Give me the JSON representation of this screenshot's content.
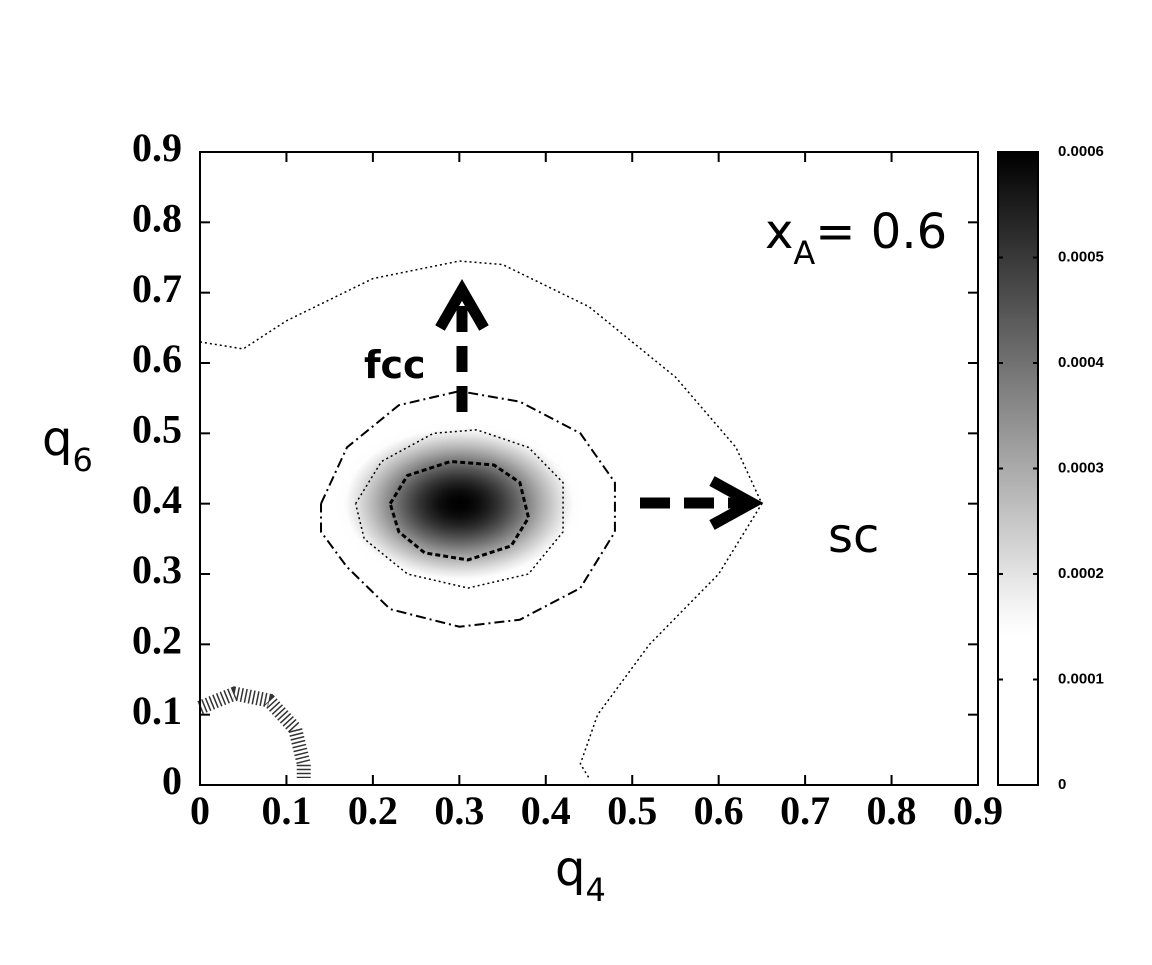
{
  "chart_data": {
    "type": "heatmap",
    "xlabel": {
      "text": "q",
      "sub": "4"
    },
    "ylabel": {
      "text": "q",
      "sub": "6"
    },
    "xlim": [
      0,
      0.9
    ],
    "xticks": [
      0,
      0.1,
      0.2,
      0.3,
      0.4,
      0.5,
      0.6,
      0.7,
      0.8,
      0.9
    ],
    "ylim": [
      0,
      0.9
    ],
    "yticks": [
      0,
      0.1,
      0.2,
      0.3,
      0.4,
      0.5,
      0.6,
      0.7,
      0.8,
      0.9
    ],
    "density": {
      "x": 0.3,
      "y": 0.4,
      "peak": 0.0006,
      "sigma_x": 0.08,
      "sigma_y": 0.065
    },
    "colorbar": {
      "lim": [
        0,
        0.0006
      ],
      "ticks": [
        0,
        0.0001,
        0.0002,
        0.0003,
        0.0004,
        0.0005,
        0.0006
      ],
      "colors": [
        {
          "value": 0,
          "color": "#ffffff"
        },
        {
          "value": 0.00015,
          "color": "#ffffff"
        },
        {
          "value": 0.0006,
          "color": "#000000"
        }
      ]
    },
    "contours": [
      {
        "style": "dotted",
        "x": [
          0,
          0.05,
          0.1,
          0.2,
          0.3,
          0.35,
          0.45,
          0.55,
          0.62,
          0.65,
          0.6,
          0.52,
          0.46,
          0.44,
          0.45
        ],
        "y": [
          0.63,
          0.62,
          0.66,
          0.72,
          0.745,
          0.74,
          0.68,
          0.58,
          0.48,
          0.4,
          0.3,
          0.2,
          0.1,
          0.03,
          0.01
        ]
      },
      {
        "style": "dashdot",
        "x": [
          0.14,
          0.17,
          0.23,
          0.3,
          0.37,
          0.44,
          0.48,
          0.48,
          0.44,
          0.37,
          0.3,
          0.22,
          0.17,
          0.14,
          0.14
        ],
        "y": [
          0.4,
          0.48,
          0.54,
          0.56,
          0.545,
          0.5,
          0.43,
          0.36,
          0.28,
          0.235,
          0.225,
          0.25,
          0.31,
          0.36,
          0.4
        ]
      },
      {
        "style": "dotted",
        "x": [
          0.18,
          0.21,
          0.27,
          0.32,
          0.38,
          0.42,
          0.42,
          0.38,
          0.31,
          0.24,
          0.19,
          0.18
        ],
        "y": [
          0.4,
          0.46,
          0.5,
          0.505,
          0.48,
          0.43,
          0.36,
          0.3,
          0.28,
          0.3,
          0.35,
          0.4
        ]
      },
      {
        "style": "dashed",
        "x": [
          0.22,
          0.24,
          0.29,
          0.34,
          0.37,
          0.38,
          0.36,
          0.31,
          0.26,
          0.23,
          0.22
        ],
        "y": [
          0.4,
          0.44,
          0.46,
          0.455,
          0.43,
          0.38,
          0.34,
          0.32,
          0.33,
          0.36,
          0.4
        ]
      },
      {
        "style": "noisy",
        "x": [
          0,
          0.04,
          0.08,
          0.11,
          0.12,
          0.12
        ],
        "y": [
          0.11,
          0.13,
          0.12,
          0.08,
          0.03,
          0.01
        ]
      }
    ],
    "annotations": [
      {
        "text": "x",
        "sub": "A",
        "rest": "= 0.6"
      },
      {
        "text": "fcc"
      },
      {
        "text": "sc"
      }
    ]
  }
}
